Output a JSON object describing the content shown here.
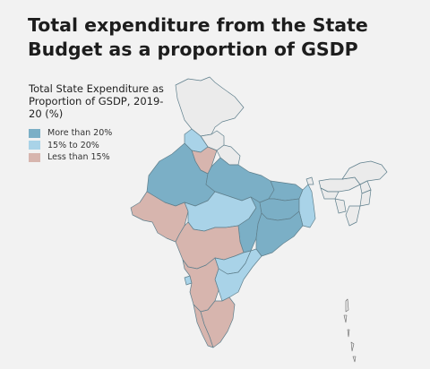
{
  "title": "Total expenditure from the State Budget as a proportion of GSDP",
  "legend": {
    "title": "Total State Expenditure as Proportion of GSDP, 2019-20 (%)",
    "items": [
      {
        "label": "More than 20%",
        "color": "#7bafc6"
      },
      {
        "label": "15% to 20%",
        "color": "#a9d3e8"
      },
      {
        "label": "Less than 15%",
        "color": "#d7b5ae"
      }
    ]
  },
  "colors": {
    "background": "#f2f2f2",
    "no_data": "#ebebeb",
    "border": "#5f7f8c"
  }
}
